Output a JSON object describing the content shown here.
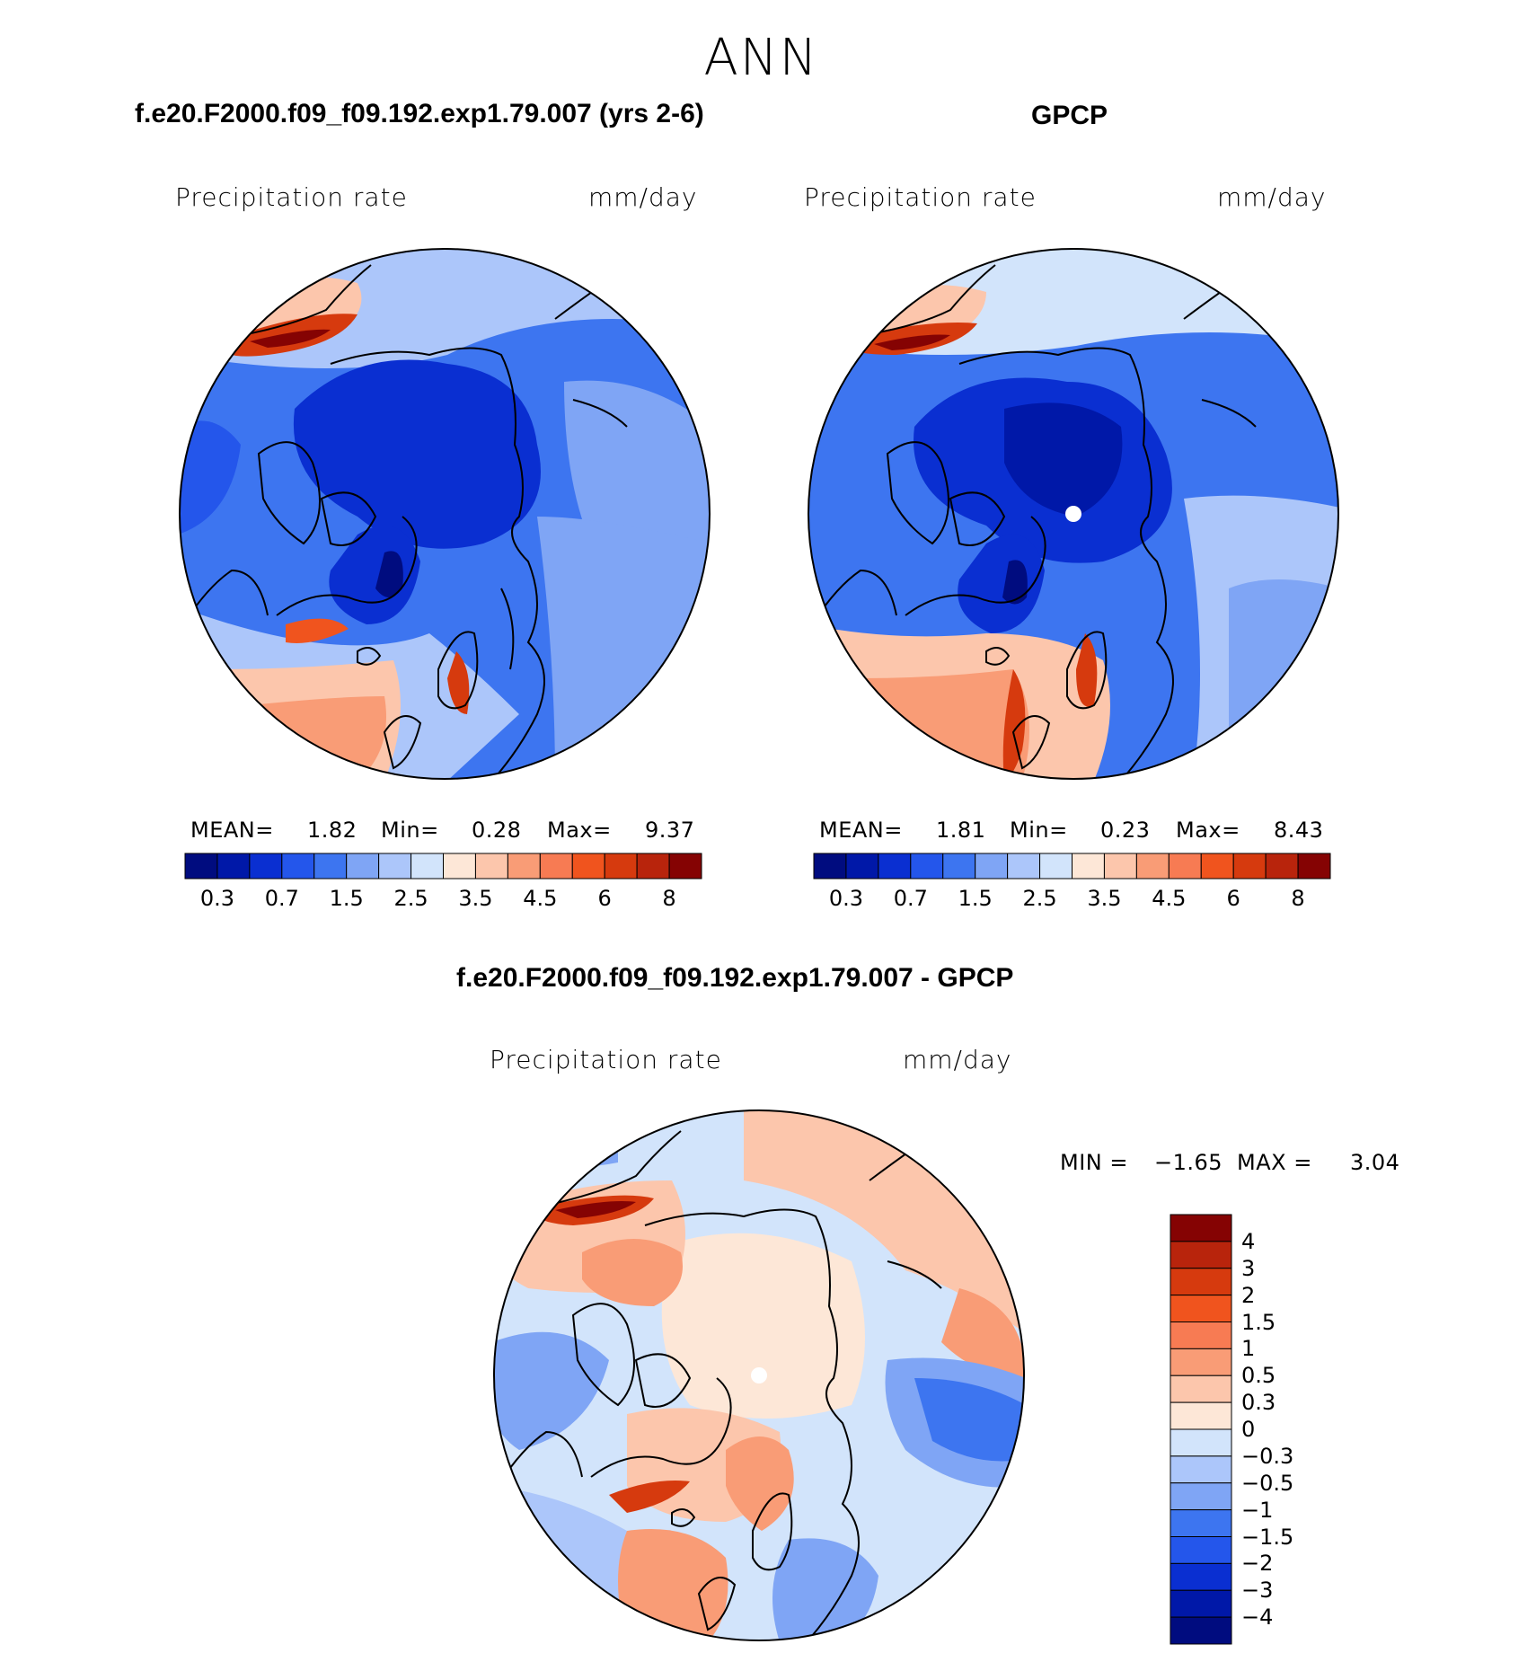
{
  "season": "ANN",
  "panels": [
    {
      "title": "f.e20.F2000.f09_f09.192.exp1.79.007 (yrs 2-6)",
      "variable": "Precipitation  rate",
      "units": "mm/day",
      "stats": {
        "mean_label": "MEAN=",
        "mean": "1.82",
        "min_label": "Min=",
        "min": "0.28",
        "max_label": "Max=",
        "max": "9.37"
      }
    },
    {
      "title": "GPCP",
      "variable": "Precipitation  rate",
      "units": "mm/day",
      "stats": {
        "mean_label": "MEAN=",
        "mean": "1.81",
        "min_label": "Min=",
        "min": "0.23",
        "max_label": "Max=",
        "max": "8.43"
      }
    }
  ],
  "colorbar_mean": {
    "colors": [
      "#000c7f",
      "#0018a8",
      "#0a2fd1",
      "#2456eb",
      "#3d75f0",
      "#7fa5f5",
      "#acc6fa",
      "#d2e4fb",
      "#fde7d7",
      "#fcc6ac",
      "#f99c76",
      "#f77b53",
      "#f0541e",
      "#d63a0e",
      "#b8240c",
      "#850303"
    ],
    "labels": [
      "0.3",
      "0.7",
      "1.5",
      "2.5",
      "3.5",
      "4.5",
      "6",
      "8"
    ]
  },
  "difference": {
    "title": "f.e20.F2000.f09_f09.192.exp1.79.007 - GPCP",
    "variable": "Precipitation  rate",
    "units": "mm/day",
    "stats": {
      "min_label": "MIN =",
      "min": "−1.65",
      "max_label": "MAX =",
      "max": "3.04"
    }
  },
  "colorbar_diff": {
    "colors_top_to_bottom": [
      "#850303",
      "#b8240c",
      "#d63a0e",
      "#f0541e",
      "#f77b53",
      "#f99c76",
      "#fcc6ac",
      "#fde7d7",
      "#d2e4fb",
      "#acc6fa",
      "#7fa5f5",
      "#3d75f0",
      "#2456eb",
      "#0a2fd1",
      "#0018a8",
      "#000c7f"
    ],
    "labels_top_to_bottom": [
      "4",
      "3",
      "2",
      "1.5",
      "1",
      "0.5",
      "0.3",
      "0",
      "−0.3",
      "−0.5",
      "−1",
      "−1.5",
      "−2",
      "−3",
      "−4"
    ]
  },
  "palette": {
    "deep_blue": "#1a3fd8",
    "mid_blue": "#4f7ff0",
    "light_blue": "#a9c4f7",
    "pale_blue": "#d6e6fb",
    "pale_red": "#fde3d3",
    "salmon": "#f7a17c",
    "red": "#e0441d",
    "dark_red": "#9b0c06"
  }
}
